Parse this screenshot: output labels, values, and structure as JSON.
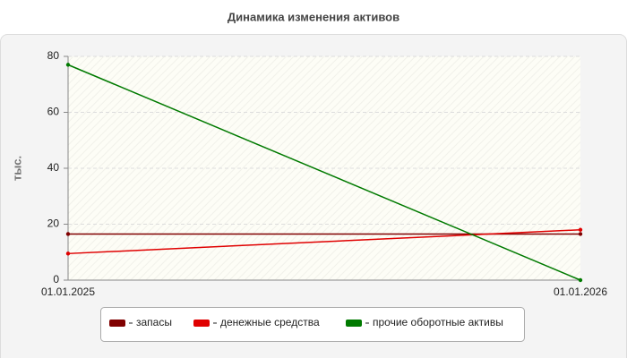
{
  "chart_data": {
    "type": "line",
    "title": "Динамика изменения активов",
    "y_label": "тыс.",
    "categories": [
      "01.01.2025",
      "01.01.2026"
    ],
    "series": [
      {
        "name": "запасы",
        "color": "#800000",
        "values": [
          16.5,
          16.5
        ]
      },
      {
        "name": "денежные средства",
        "color": "#e00000",
        "values": [
          9.5,
          18
        ]
      },
      {
        "name": "прочие оборотные активы",
        "color": "#007a00",
        "values": [
          77,
          0
        ]
      }
    ],
    "ylim": [
      0,
      80
    ],
    "yticks": [
      0,
      20,
      40,
      60,
      80
    ],
    "grid": true
  }
}
